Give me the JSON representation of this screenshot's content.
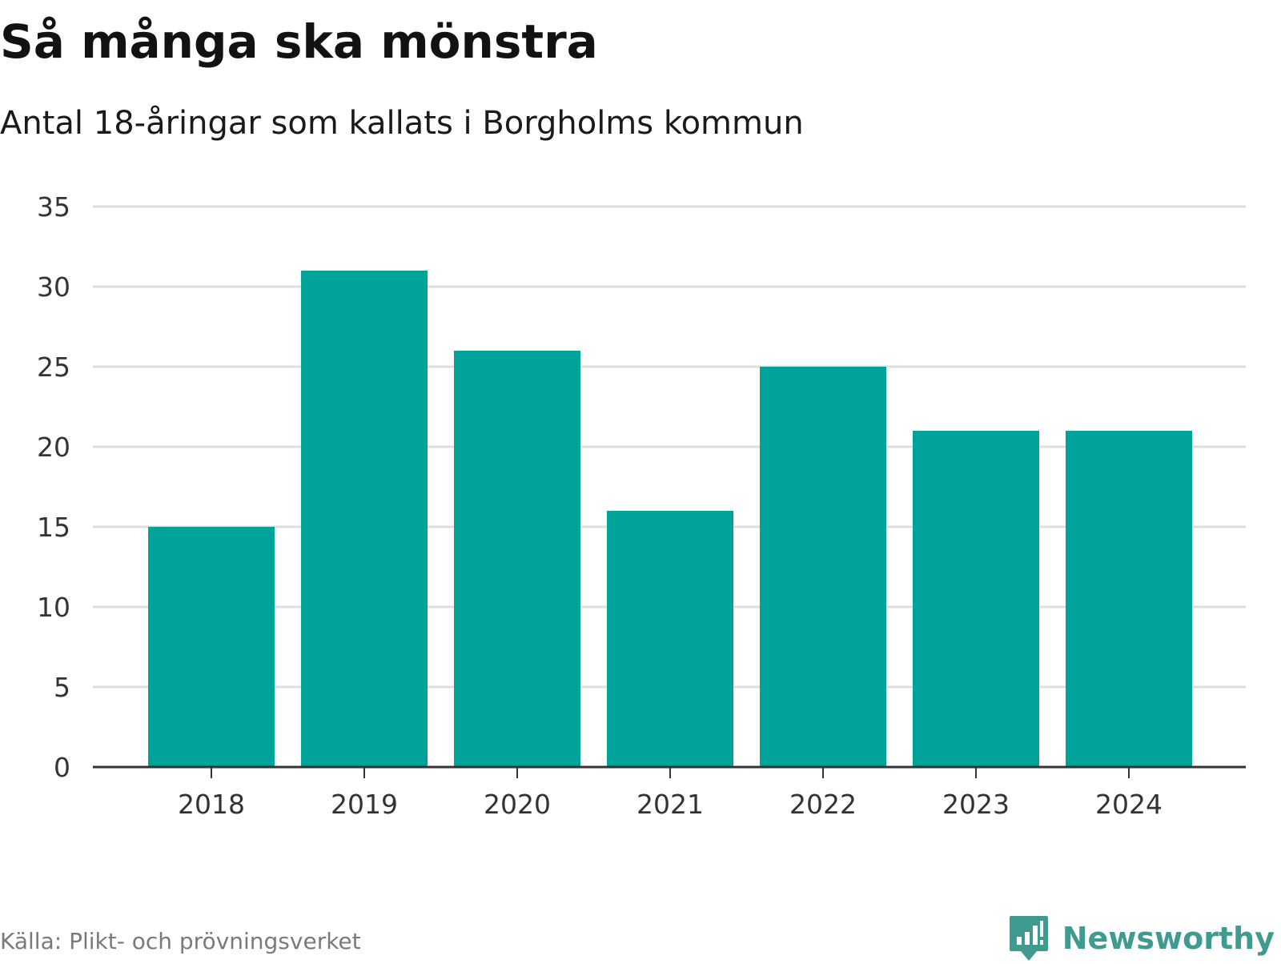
{
  "title": "Så många ska mönstra",
  "subtitle": "Antal 18-åringar som kallats i Borgholms kommun",
  "source": "Källa: Plikt- och prövningsverket",
  "brand": {
    "name": "Newsworthy",
    "icon": "newsworthy-logo-icon",
    "color": "#3f9a90"
  },
  "colors": {
    "bar": "#00a39a",
    "grid": "#dedede",
    "axis": "#333333",
    "tick_text": "#333333"
  },
  "chart_data": {
    "type": "bar",
    "categories": [
      "2018",
      "2019",
      "2020",
      "2021",
      "2022",
      "2023",
      "2024"
    ],
    "values": [
      15,
      31,
      26,
      16,
      25,
      21,
      21
    ],
    "ylim": [
      0,
      35
    ],
    "yticks": [
      "0",
      "5",
      "10",
      "15",
      "20",
      "25",
      "30",
      "35"
    ],
    "xlabel": "",
    "ylabel": "",
    "grid": true,
    "legend": false
  }
}
